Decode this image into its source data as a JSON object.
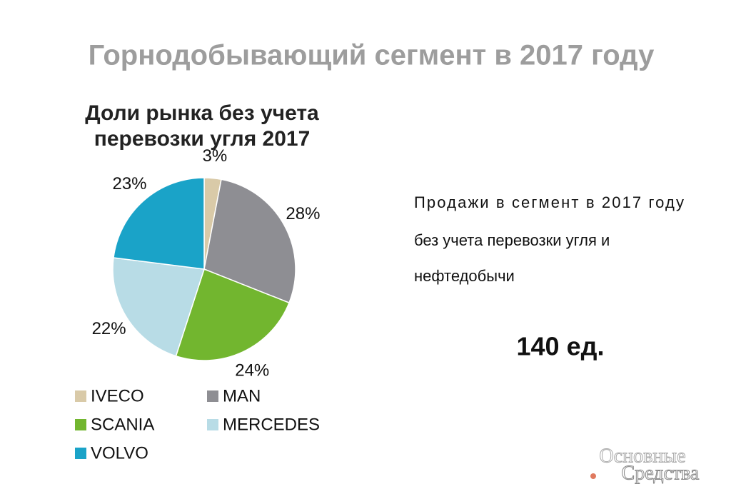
{
  "header": {
    "title": "Горнодобывающий сегмент в 2017 году"
  },
  "chart_data": {
    "type": "pie",
    "title_lines": [
      "Доли рынка без учета",
      "перевозки угля 2017"
    ],
    "categories": [
      "IVECO",
      "MAN",
      "SCANIA",
      "MERCEDES",
      "VOLVO"
    ],
    "values": [
      3,
      28,
      24,
      22,
      23
    ],
    "value_labels": [
      "3%",
      "28%",
      "24%",
      "22%",
      "23%"
    ],
    "colors": [
      "#d9caa8",
      "#8e8e93",
      "#72b62f",
      "#b8dce6",
      "#1aa3c8"
    ]
  },
  "side_text": {
    "lines": [
      "Продажи в сегмент в 2017 году",
      "без учета перевозки угля и",
      "нефтедобычи"
    ],
    "total": "140 ед."
  },
  "logo": {
    "lines": [
      "Основные",
      "Средства"
    ]
  }
}
